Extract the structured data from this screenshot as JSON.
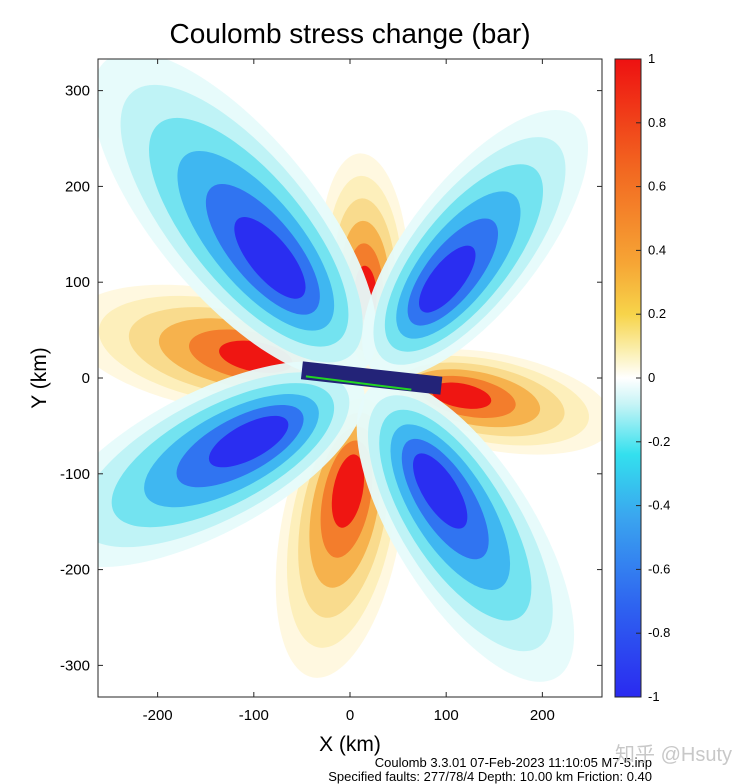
{
  "chart_data": {
    "type": "heatmap",
    "title": "Coulomb stress change (bar)",
    "xlabel": "X (km)",
    "ylabel": "Y (km)",
    "xlim": [
      -262,
      262
    ],
    "ylim": [
      -333,
      333
    ],
    "x_ticks": [
      -200,
      -100,
      0,
      100,
      200
    ],
    "y_ticks": [
      -300,
      -200,
      -100,
      0,
      100,
      200,
      300
    ],
    "colorbar": {
      "range": [
        -1,
        1
      ],
      "ticks": [
        1,
        0.8,
        0.6,
        0.4,
        0.2,
        0,
        -0.2,
        -0.4,
        -0.6,
        -0.8,
        -1
      ],
      "colormap": "anomaly (blue-cyan-white-yellow-red)"
    },
    "fault_trace": {
      "x": [
        -50,
        95
      ],
      "y": [
        8,
        -8
      ]
    },
    "lobes": [
      {
        "sign": "positive",
        "center": [
          15,
          120
        ],
        "note": "north"
      },
      {
        "sign": "positive",
        "center": [
          -140,
          30
        ],
        "note": "west"
      },
      {
        "sign": "positive",
        "center": [
          150,
          -25
        ],
        "note": "east"
      },
      {
        "sign": "positive",
        "center": [
          -10,
          -160
        ],
        "note": "south"
      },
      {
        "sign": "negative",
        "center": [
          -120,
          170
        ],
        "note": "north-west"
      },
      {
        "sign": "negative",
        "center": [
          130,
          140
        ],
        "note": "north-east"
      },
      {
        "sign": "negative",
        "center": [
          -150,
          -90
        ],
        "note": "south-west"
      },
      {
        "sign": "negative",
        "center": [
          120,
          -160
        ],
        "note": "south-east"
      }
    ]
  },
  "colors": {
    "negative": "#2a2af0",
    "positive": "#ee1111",
    "fault": "#232378",
    "fault_slip": "#22d422"
  },
  "footer": {
    "line1": "Coulomb 3.3.01 07-Feb-2023 11:10:05 M7-5.inp",
    "line2": "Specified faults: 277/78/4  Depth: 10.00 km  Friction: 0.40"
  },
  "watermark": "知乎 @Hsuty"
}
